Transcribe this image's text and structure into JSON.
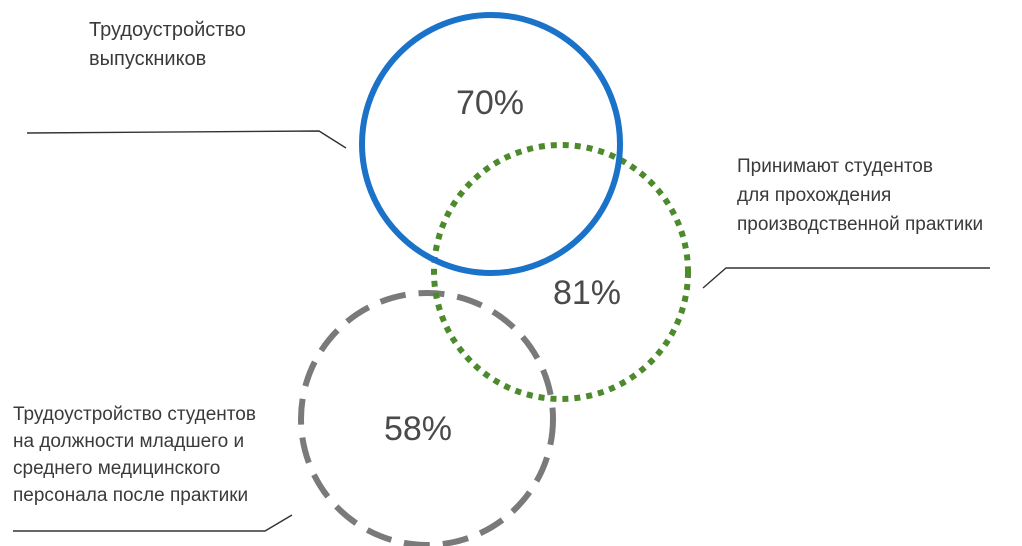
{
  "circles": {
    "employment": {
      "percent": "70%",
      "label_lines": [
        "Трудоустройство",
        "выпускников"
      ],
      "stroke_color": "#1a73c9",
      "stroke_style": "solid"
    },
    "practice": {
      "percent": "81%",
      "label_lines": [
        "Принимают студентов",
        "для прохождения",
        "производственной практики"
      ],
      "stroke_color": "#4d8a2c",
      "stroke_style": "dotted"
    },
    "staff": {
      "percent": "58%",
      "label_lines": [
        "Трудоустройство студентов",
        "на должности младшего и",
        "среднего медицинского",
        "персонала после практики"
      ],
      "stroke_color": "#7a7a7a",
      "stroke_style": "dashed"
    }
  },
  "colors": {
    "text": "#3a3a3a",
    "leader_line": "#333333"
  }
}
